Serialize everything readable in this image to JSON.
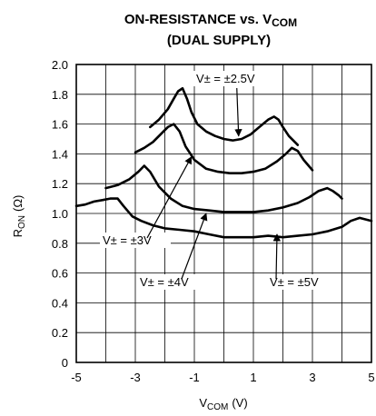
{
  "chart_data": {
    "type": "line",
    "title_line1": "ON-RESISTANCE vs. V",
    "title_sub": "COM",
    "title_line2": "(DUAL SUPPLY)",
    "xlabel_main": "V",
    "xlabel_sub": "COM",
    "xlabel_unit": "(V)",
    "ylabel_main": "R",
    "ylabel_sub": "ON",
    "ylabel_unit": "(Ω)",
    "xlim": [
      -5,
      5
    ],
    "ylim": [
      0,
      2.0
    ],
    "xticks": [
      "-5",
      "-3",
      "-1",
      "1",
      "3",
      "5"
    ],
    "xtick_values": [
      -5,
      -3,
      -1,
      1,
      3,
      5
    ],
    "yticks": [
      "0",
      "0.2",
      "0.4",
      "0.6",
      "0.8",
      "1.0",
      "1.2",
      "1.4",
      "1.6",
      "1.8",
      "2.0"
    ],
    "ytick_values": [
      0,
      0.2,
      0.4,
      0.6,
      0.8,
      1.0,
      1.2,
      1.4,
      1.6,
      1.8,
      2.0
    ],
    "grid": true,
    "line_color": "#000000",
    "series": [
      {
        "name": "V± = ±2.5V",
        "x": [
          -2.5,
          -2.2,
          -1.9,
          -1.7,
          -1.55,
          -1.4,
          -1.25,
          -1.1,
          -0.9,
          -0.6,
          -0.3,
          0.0,
          0.3,
          0.6,
          0.9,
          1.2,
          1.5,
          1.7,
          1.85,
          2.0,
          2.2,
          2.5
        ],
        "y": [
          1.58,
          1.63,
          1.7,
          1.77,
          1.82,
          1.84,
          1.77,
          1.68,
          1.6,
          1.55,
          1.52,
          1.5,
          1.49,
          1.5,
          1.53,
          1.58,
          1.63,
          1.65,
          1.63,
          1.58,
          1.52,
          1.46
        ]
      },
      {
        "name": "V± = ±3V",
        "x": [
          -3.0,
          -2.7,
          -2.4,
          -2.1,
          -1.9,
          -1.7,
          -1.5,
          -1.3,
          -1.0,
          -0.6,
          -0.2,
          0.2,
          0.6,
          1.0,
          1.4,
          1.8,
          2.1,
          2.3,
          2.5,
          2.7,
          3.0
        ],
        "y": [
          1.41,
          1.44,
          1.48,
          1.54,
          1.58,
          1.6,
          1.55,
          1.45,
          1.36,
          1.3,
          1.28,
          1.27,
          1.27,
          1.28,
          1.3,
          1.35,
          1.4,
          1.44,
          1.42,
          1.36,
          1.29
        ]
      },
      {
        "name": "V± = ±4V",
        "x": [
          -4.0,
          -3.6,
          -3.2,
          -2.9,
          -2.7,
          -2.5,
          -2.2,
          -1.8,
          -1.4,
          -1.0,
          -0.5,
          0.0,
          0.5,
          1.0,
          1.5,
          2.0,
          2.5,
          2.9,
          3.2,
          3.5,
          3.7,
          3.9,
          4.0
        ],
        "y": [
          1.17,
          1.19,
          1.23,
          1.28,
          1.32,
          1.28,
          1.18,
          1.1,
          1.05,
          1.03,
          1.02,
          1.01,
          1.01,
          1.01,
          1.02,
          1.04,
          1.07,
          1.11,
          1.15,
          1.17,
          1.15,
          1.12,
          1.1
        ]
      },
      {
        "name": "V± = ±5V",
        "x": [
          -5.0,
          -4.7,
          -4.4,
          -4.1,
          -3.85,
          -3.6,
          -3.4,
          -3.1,
          -2.8,
          -2.4,
          -2.0,
          -1.5,
          -1.0,
          -0.5,
          0.0,
          0.5,
          1.0,
          1.5,
          2.0,
          2.5,
          3.0,
          3.5,
          4.0,
          4.3,
          4.6,
          5.0
        ],
        "y": [
          1.05,
          1.06,
          1.08,
          1.09,
          1.1,
          1.1,
          1.05,
          0.98,
          0.95,
          0.92,
          0.9,
          0.89,
          0.88,
          0.86,
          0.84,
          0.84,
          0.84,
          0.85,
          0.84,
          0.85,
          0.86,
          0.88,
          0.91,
          0.95,
          0.97,
          0.95
        ]
      }
    ],
    "annotations": [
      {
        "text": "V± = ±2.5V",
        "tip": [
          0.5,
          1.52
        ]
      },
      {
        "text": "V± = ±3V",
        "tip": [
          -1.1,
          1.38
        ]
      },
      {
        "text": "V± = ±4V",
        "tip": [
          -0.6,
          1.0
        ]
      },
      {
        "text": "V± = ±5V",
        "tip": [
          1.8,
          0.86
        ]
      }
    ]
  }
}
